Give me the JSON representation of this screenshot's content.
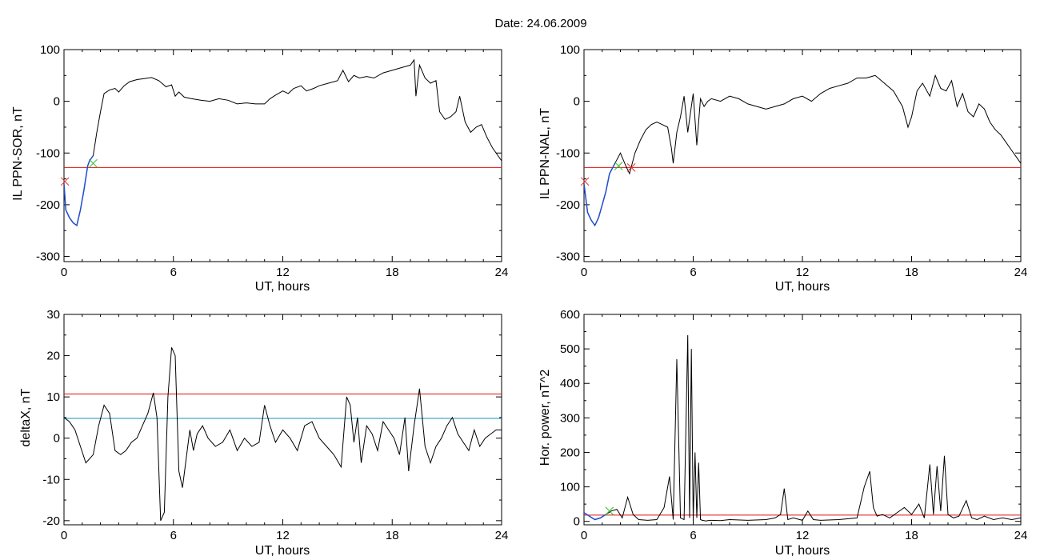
{
  "page": {
    "title": "Date:  24.06.2009"
  },
  "colors": {
    "trace": "#000000",
    "threshold_red": "#e01010",
    "threshold_blue": "#1a8fbf",
    "early_segment": "#1f4fd0",
    "marker_green": "#20c020",
    "marker_red": "#e03030"
  },
  "chart_data": [
    {
      "id": "il-ppn-sor",
      "type": "line",
      "xlabel": "UT, hours",
      "ylabel": "IL PPN-SOR, nT",
      "xlim": [
        0,
        24
      ],
      "ylim": [
        -310,
        100
      ],
      "xticks": [
        0,
        6,
        12,
        18,
        24
      ],
      "yticks": [
        100,
        0,
        -100,
        -200,
        -300
      ],
      "x": [
        0.0,
        0.1,
        0.3,
        0.5,
        0.7,
        0.9,
        1.1,
        1.3,
        1.4,
        1.6,
        1.8,
        2.0,
        2.2,
        2.5,
        2.8,
        3.0,
        3.3,
        3.6,
        4.0,
        4.4,
        4.8,
        5.2,
        5.6,
        5.9,
        6.1,
        6.3,
        6.6,
        7.0,
        7.5,
        8.0,
        8.5,
        9.0,
        9.5,
        10.0,
        10.5,
        11.0,
        11.3,
        11.6,
        12.0,
        12.3,
        12.6,
        13.0,
        13.3,
        13.7,
        14.0,
        14.5,
        15.0,
        15.3,
        15.6,
        15.9,
        16.2,
        16.6,
        17.0,
        17.5,
        18.0,
        18.5,
        19.0,
        19.2,
        19.3,
        19.5,
        19.8,
        20.1,
        20.4,
        20.6,
        20.9,
        21.2,
        21.5,
        21.7,
        22.0,
        22.3,
        22.6,
        22.9,
        23.2,
        23.5,
        23.8,
        24.0
      ],
      "y": [
        -160,
        -210,
        -225,
        -235,
        -240,
        -210,
        -170,
        -125,
        -115,
        -105,
        -60,
        -20,
        15,
        22,
        25,
        18,
        30,
        38,
        42,
        44,
        46,
        40,
        28,
        32,
        10,
        18,
        8,
        5,
        2,
        0,
        5,
        2,
        -5,
        -3,
        -5,
        -5,
        5,
        12,
        20,
        15,
        25,
        30,
        20,
        25,
        30,
        35,
        40,
        60,
        38,
        50,
        45,
        48,
        45,
        55,
        60,
        65,
        70,
        80,
        10,
        70,
        45,
        35,
        40,
        -20,
        -35,
        -30,
        -20,
        10,
        -40,
        -60,
        -50,
        -45,
        -70,
        -90,
        -105,
        -115
      ],
      "markers": [
        {
          "x": 1.6,
          "y": -120,
          "color": "marker_green"
        },
        {
          "x": 0.05,
          "y": -155,
          "color": "marker_red"
        }
      ],
      "thresholds": [
        {
          "y": -128,
          "color": "threshold_red"
        }
      ],
      "early_segment_end": 1.6
    },
    {
      "id": "il-ppn-nal",
      "type": "line",
      "xlabel": "UT, hours",
      "ylabel": "IL PPN-NAL, nT",
      "xlim": [
        0,
        24
      ],
      "ylim": [
        -310,
        100
      ],
      "xticks": [
        0,
        6,
        12,
        18,
        24
      ],
      "yticks": [
        100,
        0,
        -100,
        -200,
        -300
      ],
      "x": [
        0.0,
        0.2,
        0.4,
        0.6,
        0.8,
        1.0,
        1.2,
        1.4,
        1.7,
        2.0,
        2.3,
        2.5,
        2.8,
        3.1,
        3.4,
        3.7,
        4.0,
        4.3,
        4.6,
        4.8,
        4.9,
        5.1,
        5.3,
        5.5,
        5.7,
        5.9,
        6.0,
        6.2,
        6.4,
        6.6,
        6.8,
        7.0,
        7.5,
        8.0,
        8.5,
        9.0,
        9.5,
        10.0,
        10.5,
        11.0,
        11.5,
        12.0,
        12.5,
        13.0,
        13.5,
        14.0,
        14.5,
        15.0,
        15.5,
        15.8,
        16.0,
        16.5,
        17.0,
        17.5,
        17.8,
        18.0,
        18.3,
        18.6,
        19.0,
        19.3,
        19.6,
        19.9,
        20.2,
        20.5,
        20.8,
        21.1,
        21.4,
        21.7,
        22.0,
        22.3,
        22.6,
        22.9,
        23.2,
        23.5,
        23.8,
        24.0
      ],
      "y": [
        -160,
        -215,
        -230,
        -240,
        -225,
        -200,
        -175,
        -140,
        -120,
        -100,
        -125,
        -140,
        -100,
        -75,
        -55,
        -45,
        -40,
        -45,
        -50,
        -90,
        -120,
        -60,
        -30,
        10,
        -60,
        -10,
        15,
        -85,
        5,
        -10,
        0,
        5,
        0,
        10,
        5,
        -5,
        -10,
        -15,
        -10,
        -5,
        5,
        10,
        0,
        15,
        25,
        30,
        35,
        45,
        45,
        48,
        50,
        35,
        20,
        -10,
        -50,
        -30,
        20,
        35,
        10,
        50,
        25,
        20,
        40,
        -10,
        15,
        -20,
        -30,
        -5,
        -15,
        -40,
        -55,
        -65,
        -80,
        -95,
        -110,
        -120
      ],
      "markers": [
        {
          "x": 1.9,
          "y": -125,
          "color": "marker_green"
        },
        {
          "x": 2.6,
          "y": -128,
          "color": "marker_red"
        },
        {
          "x": 0.05,
          "y": -155,
          "color": "marker_red"
        }
      ],
      "thresholds": [
        {
          "y": -128,
          "color": "threshold_red"
        }
      ],
      "early_segment_end": 1.9
    },
    {
      "id": "deltax",
      "type": "line",
      "xlabel": "UT, hours",
      "ylabel": "deltaX, nT",
      "xlim": [
        0,
        24
      ],
      "ylim": [
        -21,
        30
      ],
      "xticks": [
        0,
        6,
        12,
        18,
        24
      ],
      "yticks": [
        30,
        20,
        10,
        0,
        -10,
        -20
      ],
      "x": [
        0.0,
        0.3,
        0.6,
        0.9,
        1.2,
        1.6,
        1.9,
        2.2,
        2.5,
        2.8,
        3.1,
        3.4,
        3.7,
        4.0,
        4.3,
        4.6,
        4.9,
        5.1,
        5.3,
        5.5,
        5.7,
        5.9,
        6.1,
        6.3,
        6.5,
        6.7,
        6.9,
        7.1,
        7.3,
        7.6,
        7.9,
        8.3,
        8.7,
        9.1,
        9.5,
        9.9,
        10.3,
        10.7,
        11.0,
        11.3,
        11.6,
        12.0,
        12.4,
        12.8,
        13.2,
        13.6,
        14.0,
        14.4,
        14.8,
        15.2,
        15.5,
        15.7,
        15.9,
        16.1,
        16.3,
        16.6,
        16.9,
        17.2,
        17.5,
        17.8,
        18.1,
        18.4,
        18.7,
        18.9,
        19.2,
        19.5,
        19.8,
        20.1,
        20.4,
        20.7,
        21.0,
        21.3,
        21.6,
        21.9,
        22.2,
        22.5,
        22.8,
        23.1,
        23.4,
        23.7,
        24.0
      ],
      "y": [
        5,
        4,
        2,
        -2,
        -6,
        -4,
        3,
        8,
        6,
        -3,
        -4,
        -3,
        -1,
        0,
        3,
        6,
        11,
        5,
        -20,
        -18,
        10,
        22,
        20,
        -8,
        -12,
        -5,
        2,
        -3,
        1,
        3,
        0,
        -2,
        -1,
        2,
        -3,
        0,
        -2,
        -1,
        8,
        3,
        -1,
        2,
        0,
        -3,
        3,
        4,
        0,
        -2,
        -4,
        -7,
        10,
        8,
        -1,
        5,
        -6,
        3,
        1,
        -3,
        4,
        2,
        0,
        -4,
        5,
        -8,
        3,
        12,
        -2,
        -6,
        -2,
        0,
        3,
        5,
        1,
        -1,
        -3,
        2,
        -2,
        0,
        1,
        2,
        2
      ],
      "markers": [],
      "thresholds": [
        {
          "y": 10.7,
          "color": "threshold_red"
        },
        {
          "y": 4.8,
          "color": "threshold_blue"
        }
      ],
      "early_segment_end": null
    },
    {
      "id": "hor-power",
      "type": "line",
      "xlabel": "UT, hours",
      "ylabel": "Hor. power, nT^2",
      "xlim": [
        0,
        24
      ],
      "ylim": [
        -10,
        600
      ],
      "xticks": [
        0,
        6,
        12,
        18,
        24
      ],
      "yticks": [
        600,
        500,
        400,
        300,
        200,
        100,
        0
      ],
      "x": [
        0.0,
        0.3,
        0.6,
        0.9,
        1.2,
        1.5,
        1.8,
        2.1,
        2.4,
        2.7,
        3.0,
        3.5,
        4.0,
        4.4,
        4.7,
        4.9,
        5.1,
        5.3,
        5.5,
        5.7,
        5.8,
        5.9,
        6.0,
        6.1,
        6.2,
        6.3,
        6.4,
        6.5,
        6.6,
        6.7,
        6.8,
        7.0,
        7.5,
        8.0,
        9.0,
        10.0,
        10.5,
        10.8,
        11.0,
        11.2,
        11.5,
        12.0,
        12.3,
        12.6,
        13.0,
        14.0,
        15.0,
        15.4,
        15.7,
        15.9,
        16.1,
        16.4,
        16.8,
        17.2,
        17.6,
        18.0,
        18.4,
        18.7,
        19.0,
        19.2,
        19.4,
        19.6,
        19.8,
        20.0,
        20.3,
        20.6,
        21.0,
        21.3,
        21.6,
        22.0,
        22.5,
        23.0,
        23.5,
        24.0
      ],
      "y": [
        25,
        15,
        5,
        10,
        20,
        30,
        35,
        10,
        70,
        20,
        5,
        3,
        5,
        40,
        130,
        5,
        470,
        10,
        5,
        540,
        10,
        500,
        5,
        200,
        10,
        170,
        5,
        3,
        2,
        1,
        2,
        3,
        2,
        5,
        3,
        5,
        10,
        20,
        95,
        5,
        10,
        3,
        30,
        5,
        3,
        5,
        10,
        100,
        145,
        40,
        15,
        20,
        10,
        25,
        40,
        20,
        50,
        10,
        165,
        20,
        160,
        30,
        190,
        20,
        10,
        15,
        60,
        10,
        5,
        15,
        5,
        10,
        5,
        10
      ],
      "markers": [
        {
          "x": 1.4,
          "y": 30,
          "color": "marker_green"
        }
      ],
      "thresholds": [
        {
          "y": 18,
          "color": "threshold_red"
        }
      ],
      "early_segment_end": 1.4
    }
  ]
}
